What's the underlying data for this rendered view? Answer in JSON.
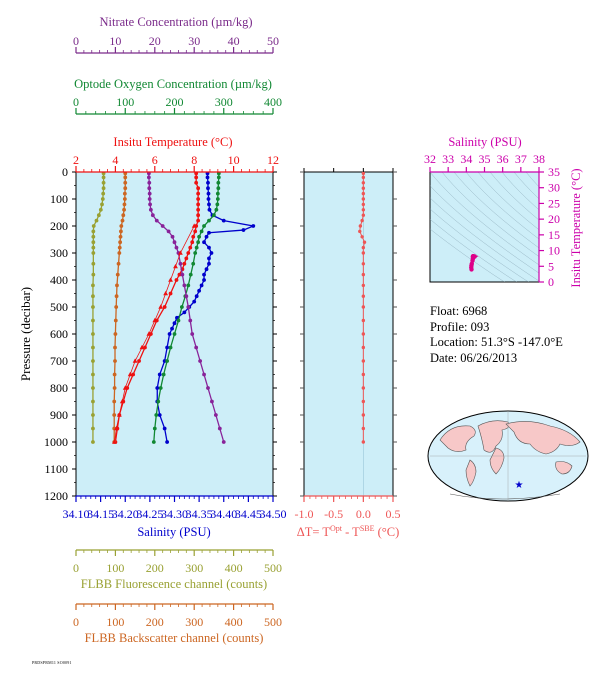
{
  "chart_data": [
    {
      "type": "line",
      "panel": "main-profile",
      "ylabel": "Pressure (decibar)",
      "ylim": [
        1200,
        0
      ],
      "yticks": [
        0,
        100,
        200,
        300,
        400,
        500,
        600,
        700,
        800,
        900,
        1000,
        1100,
        1200
      ],
      "background": "#cdeef8",
      "axes": {
        "nitrate": {
          "label": "Nitrate Concentration (µm/kg)",
          "range": [
            0,
            50
          ],
          "ticks": [
            0,
            10,
            20,
            30,
            40,
            50
          ],
          "color": "#7a2a8a"
        },
        "oxygen": {
          "label": "Optode Oxygen Concentration (µm/kg)",
          "range": [
            0,
            400
          ],
          "ticks": [
            0,
            100,
            200,
            300,
            400
          ],
          "color": "#118833"
        },
        "temperature": {
          "label": "Insitu Temperature (°C)",
          "range": [
            2,
            12
          ],
          "ticks": [
            2,
            4,
            6,
            8,
            10,
            12
          ],
          "color": "#ee1111"
        },
        "salinity": {
          "label": "Salinity (PSU)",
          "range": [
            34.1,
            34.5
          ],
          "ticks": [
            "34.10",
            "34.15",
            "34.20",
            "34.25",
            "34.30",
            "34.35",
            "34.40",
            "34.45",
            "34.50"
          ],
          "color": "#0000cc"
        },
        "fluorescence": {
          "label": "FLBB Fluorescence channel (counts)",
          "range": [
            0,
            500
          ],
          "ticks": [
            0,
            100,
            200,
            300,
            400,
            500
          ],
          "color": "#99a133"
        },
        "backscatter": {
          "label": "FLBB Backscatter channel (counts)",
          "range": [
            0,
            500
          ],
          "ticks": [
            0,
            100,
            200,
            300,
            400,
            500
          ],
          "color": "#cc6622"
        }
      },
      "series": [
        {
          "key": "temperature",
          "axis": "temperature",
          "color": "#ee1111",
          "marker": "dot",
          "pressure": [
            5,
            20,
            40,
            60,
            80,
            100,
            120,
            140,
            160,
            180,
            200,
            220,
            240,
            260,
            280,
            300,
            320,
            340,
            360,
            380,
            400,
            450,
            500,
            550,
            600,
            650,
            700,
            750,
            800,
            850,
            900,
            950,
            1000
          ],
          "values": [
            8.1,
            8.1,
            8.1,
            8.2,
            8.2,
            8.2,
            8.2,
            8.2,
            8.2,
            8.2,
            8.1,
            8.05,
            7.95,
            7.9,
            7.8,
            7.7,
            7.6,
            7.5,
            7.4,
            7.25,
            7.1,
            6.8,
            6.5,
            6.1,
            5.8,
            5.5,
            5.2,
            4.9,
            4.6,
            4.4,
            4.2,
            4.1,
            4.0
          ]
        },
        {
          "key": "salinity",
          "axis": "salinity",
          "color": "#0000cc",
          "marker": "dot",
          "pressure": [
            5,
            20,
            40,
            60,
            80,
            100,
            120,
            140,
            160,
            180,
            200,
            215,
            225,
            240,
            260,
            280,
            300,
            320,
            340,
            360,
            380,
            400,
            420,
            440,
            460,
            480,
            500,
            520,
            540,
            560,
            580,
            600,
            650,
            700,
            750,
            800,
            850,
            900,
            950,
            1000
          ],
          "values": [
            34.367,
            34.367,
            34.368,
            34.368,
            34.369,
            34.369,
            34.37,
            34.371,
            34.377,
            34.4,
            34.46,
            34.44,
            34.37,
            34.365,
            34.36,
            34.37,
            34.375,
            34.37,
            34.37,
            34.365,
            34.36,
            34.36,
            34.355,
            34.35,
            34.345,
            34.34,
            34.33,
            34.32,
            34.305,
            34.3,
            34.295,
            34.29,
            34.285,
            34.28,
            34.27,
            34.265,
            34.265,
            34.27,
            34.28,
            34.285
          ]
        },
        {
          "key": "oxygen",
          "axis": "oxygen",
          "color": "#118833",
          "marker": "dot",
          "pressure": [
            5,
            20,
            40,
            60,
            80,
            100,
            120,
            140,
            160,
            180,
            200,
            220,
            240,
            260,
            280,
            300,
            340,
            380,
            420,
            460,
            500,
            550,
            600,
            650,
            700,
            750,
            800,
            850,
            900,
            950,
            1000
          ],
          "values": [
            290,
            290,
            289,
            289,
            288,
            288,
            287,
            285,
            280,
            270,
            260,
            255,
            250,
            248,
            245,
            242,
            238,
            233,
            228,
            222,
            215,
            208,
            200,
            192,
            185,
            178,
            172,
            167,
            163,
            160,
            158
          ]
        },
        {
          "key": "nitrate",
          "axis": "nitrate",
          "color": "#882299",
          "marker": "dot",
          "pressure": [
            5,
            20,
            40,
            60,
            80,
            100,
            120,
            140,
            160,
            180,
            200,
            220,
            240,
            260,
            280,
            300,
            340,
            380,
            420,
            460,
            500,
            550,
            600,
            650,
            700,
            750,
            800,
            850,
            900,
            950,
            1000
          ],
          "values": [
            18.5,
            18.5,
            18.6,
            18.6,
            18.7,
            18.7,
            18.8,
            19.0,
            19.5,
            20.5,
            22.0,
            23.5,
            24.5,
            25.0,
            25.5,
            26.0,
            26.5,
            27.0,
            27.5,
            28.0,
            28.5,
            29.0,
            29.5,
            30.5,
            31.5,
            32.5,
            33.5,
            34.5,
            35.5,
            36.5,
            37.5
          ]
        },
        {
          "key": "fluorescence",
          "axis": "fluorescence",
          "color": "#99a133",
          "marker": "dot",
          "pressure": [
            5,
            20,
            40,
            60,
            80,
            100,
            120,
            140,
            160,
            180,
            200,
            220,
            240,
            260,
            280,
            300,
            340,
            380,
            420,
            460,
            500,
            550,
            600,
            650,
            700,
            750,
            800,
            850,
            900,
            950,
            1000
          ],
          "values": [
            70,
            70,
            70,
            70,
            69,
            68,
            66,
            63,
            58,
            52,
            45,
            44,
            44,
            44,
            44,
            44,
            44,
            44,
            43,
            43,
            43,
            43,
            43,
            43,
            43,
            43,
            43,
            43,
            43,
            43,
            43
          ]
        },
        {
          "key": "backscatter",
          "axis": "backscatter",
          "color": "#cc6622",
          "marker": "dot",
          "pressure": [
            5,
            20,
            40,
            60,
            80,
            100,
            120,
            140,
            160,
            180,
            200,
            220,
            240,
            260,
            280,
            300,
            340,
            380,
            420,
            460,
            500,
            550,
            600,
            650,
            700,
            750,
            800,
            850,
            900,
            950,
            1000
          ],
          "values": [
            125,
            125,
            125,
            125,
            124,
            124,
            123,
            122,
            120,
            118,
            115,
            114,
            113,
            112,
            111,
            110,
            108,
            106,
            104,
            103,
            102,
            101,
            100,
            99,
            99,
            98,
            98,
            97,
            97,
            97,
            97
          ]
        },
        {
          "key": "temperature-triangles",
          "axis": "temperature",
          "color": "#ee1111",
          "marker": "triangle",
          "pressure": [
            200,
            300,
            350,
            400,
            450,
            500,
            550,
            600,
            650,
            700,
            750,
            800,
            850,
            900,
            950,
            1000
          ],
          "values": [
            8.0,
            7.3,
            7.05,
            6.8,
            6.55,
            6.3,
            6.0,
            5.7,
            5.35,
            5.0,
            4.75,
            4.5,
            4.35,
            4.2,
            4.05,
            3.95
          ]
        }
      ]
    },
    {
      "type": "line",
      "panel": "delta-t",
      "xlabel": "ΔT= T",
      "xlabel_sup1": "Opt",
      "xlabel_mid": " - T",
      "xlabel_sup2": "SBE",
      "xlabel_end": " (°C)",
      "xlim": [
        -1.0,
        0.5
      ],
      "xticks": [
        "-1.0",
        "-0.5",
        "0.0",
        "0.5"
      ],
      "ylim": [
        1200,
        0
      ],
      "color": "#ee5555",
      "pressure": [
        5,
        20,
        40,
        60,
        80,
        100,
        120,
        140,
        160,
        180,
        200,
        220,
        240,
        260,
        280,
        300,
        340,
        380,
        420,
        460,
        500,
        550,
        600,
        650,
        700,
        750,
        800,
        850,
        900,
        950,
        1000
      ],
      "values": [
        0.0,
        0.0,
        0.0,
        0.0,
        0.0,
        0.0,
        0.0,
        0.0,
        0.0,
        -0.02,
        -0.05,
        -0.06,
        -0.02,
        0.02,
        0.0,
        0.0,
        0.0,
        0.0,
        0.0,
        0.0,
        0.0,
        0.0,
        0.0,
        0.0,
        0.0,
        0.0,
        0.0,
        0.0,
        0.0,
        0.0,
        0.0
      ]
    },
    {
      "type": "scatter",
      "panel": "ts-diagram",
      "xlabel": "Salinity (PSU)",
      "ylabel": "Insitu Temperature (°C)",
      "xlim": [
        32,
        38
      ],
      "ylim": [
        0,
        35
      ],
      "xticks": [
        32,
        33,
        34,
        35,
        36,
        37,
        38
      ],
      "yticks": [
        0,
        5,
        10,
        15,
        20,
        25,
        30,
        35
      ],
      "color": "#dd0088",
      "salinity": [
        34.36,
        34.37,
        34.4,
        34.46,
        34.37,
        34.36,
        34.34,
        34.3,
        34.28,
        34.27,
        34.285
      ],
      "temperature": [
        8.1,
        8.2,
        8.2,
        8.1,
        7.8,
        7.4,
        6.8,
        5.8,
        5.2,
        4.6,
        4.0
      ]
    }
  ],
  "info": {
    "float": "Float:  6968",
    "profile": "Profile:  093",
    "location": "Location:  51.3°S  -147.0°E",
    "date": "Date:  06/26/2013"
  },
  "map": {
    "marker_color": "#0000cc",
    "land_color": "#f7c8c8",
    "ocean_color": "#d8f1fb"
  },
  "stamp": "PRDSPRM11 SO0091"
}
